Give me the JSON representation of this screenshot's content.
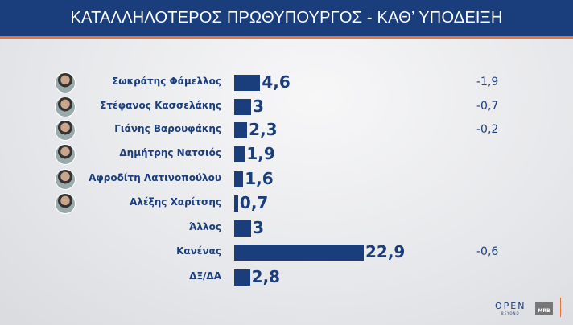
{
  "title": "ΚΑΤΑΛΛΗΛΟΤΕΡΟΣ  ΠΡΩΘΥΠΟΥΡΓΟΣ - ΚΑΘ’ ΥΠΟΔΕΙΞΗ",
  "colors": {
    "header": "#1a3d7c",
    "bar": "#1a3d7c",
    "accent": "#e8743a"
  },
  "chart_data": {
    "type": "bar",
    "orientation": "horizontal",
    "title": "ΚΑΤΑΛΛΗΛΟΤΕΡΟΣ  ΠΡΩΘΥΠΟΥΡΓΟΣ - ΚΑΘ’ ΥΠΟΔΕΙΞΗ",
    "categories": [
      "Σωκράτης Φάμελλος",
      "Στέφανος Κασσελάκης",
      "Γιάνης Βαρουφάκης",
      "Δημήτρης Νατσιός",
      "Αφροδίτη Λατινοπούλου",
      "Αλέξης Χαρίτσης",
      "Άλλος",
      "Κανένας",
      "ΔΞ/ΔΑ"
    ],
    "values": [
      4.6,
      3,
      2.3,
      1.9,
      1.6,
      0.7,
      3,
      22.9,
      2.8
    ],
    "value_labels": [
      "4,6",
      "3",
      "2,3",
      "1,9",
      "1,6",
      "0,7",
      "3",
      "22,9",
      "2,8"
    ],
    "changes": [
      "-1,9",
      "-0,7",
      "-0,2",
      "",
      "",
      "",
      "",
      "-0,6",
      ""
    ],
    "has_photo": [
      true,
      true,
      true,
      true,
      true,
      true,
      false,
      false,
      false
    ]
  },
  "logos": {
    "open": "OPEN",
    "open_sub": "BEYOND",
    "mrb": "MRB"
  }
}
